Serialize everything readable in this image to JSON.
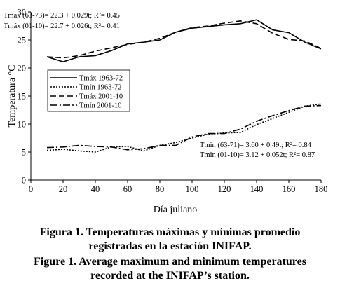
{
  "chart_data": {
    "type": "line",
    "xlabel": "Día juliano",
    "ylabel": "Temperatura °C",
    "xlim": [
      0,
      180
    ],
    "ylim": [
      0,
      30
    ],
    "xticks": [
      0,
      20,
      40,
      60,
      80,
      100,
      120,
      140,
      160,
      180
    ],
    "yticks": [
      0,
      5,
      10,
      15,
      20,
      25,
      30
    ],
    "grid": false,
    "legend_position": "center-left",
    "series": [
      {
        "name": "Tmáx 1963-72",
        "dash": "solid",
        "x": [
          10,
          20,
          30,
          40,
          50,
          60,
          70,
          80,
          90,
          100,
          110,
          120,
          130,
          140,
          150,
          160,
          170,
          180
        ],
        "y": [
          22.0,
          21.1,
          22.0,
          22.2,
          23.1,
          24.3,
          24.6,
          25.0,
          26.4,
          27.1,
          27.4,
          27.7,
          27.9,
          28.6,
          26.8,
          26.3,
          24.6,
          23.4
        ]
      },
      {
        "name": "Tmín 1963-72",
        "dash": "2,2",
        "x": [
          10,
          20,
          30,
          40,
          50,
          60,
          70,
          80,
          90,
          100,
          110,
          120,
          130,
          140,
          150,
          160,
          170,
          180
        ],
        "y": [
          5.3,
          5.5,
          5.2,
          5.0,
          5.9,
          6.0,
          5.2,
          6.2,
          6.7,
          7.5,
          8.2,
          8.4,
          8.5,
          9.9,
          11.0,
          12.1,
          13.2,
          13.6
        ]
      },
      {
        "name": "Tmáx 2001-10",
        "dash": "8,4",
        "x": [
          10,
          20,
          30,
          40,
          50,
          60,
          70,
          80,
          90,
          100,
          110,
          120,
          130,
          140,
          150,
          160,
          170,
          180
        ],
        "y": [
          22.0,
          21.8,
          22.2,
          23.0,
          23.6,
          24.2,
          24.6,
          25.3,
          26.4,
          27.2,
          27.5,
          28.0,
          28.4,
          27.9,
          26.2,
          25.1,
          24.8,
          23.5
        ]
      },
      {
        "name": "Tmín 2001-10",
        "dash": "10,3,2,3",
        "x": [
          10,
          20,
          30,
          40,
          50,
          60,
          70,
          80,
          90,
          100,
          110,
          120,
          130,
          140,
          150,
          160,
          170,
          180
        ],
        "y": [
          5.8,
          5.9,
          6.2,
          6.0,
          5.9,
          5.4,
          5.6,
          6.2,
          6.2,
          7.7,
          8.3,
          8.3,
          9.1,
          10.5,
          11.5,
          12.4,
          13.2,
          13.3
        ]
      }
    ],
    "annotations": [
      {
        "text": "Tmáx (63-73)= 22.3 + 0.029t; R²= 0.45"
      },
      {
        "text": "Tmáx (01-10)= 22.7 + 0.026t; R²= 0.41"
      },
      {
        "text": "Tmin (63-71)= 3.60 + 0.49t; R²= 0.84"
      },
      {
        "text": "Tmin (01-10)= 3.12 + 0.052t; R²= 0.87"
      }
    ]
  },
  "caption": {
    "es_line1": "Figura 1. Temperaturas máximas y mínimas promedio",
    "es_line2": "registradas en la estación INIFAP.",
    "en_line1": "Figure 1. Average maximum and minimum temperatures",
    "en_line2": "recorded at the INIFAP’s station."
  }
}
